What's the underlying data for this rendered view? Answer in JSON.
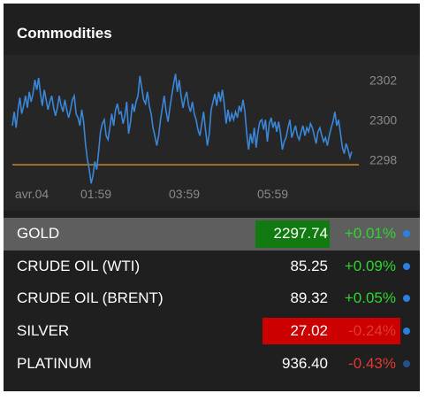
{
  "header": {
    "title": "Commodities"
  },
  "colors": {
    "up": "#2fd52f",
    "down": "#e03a2e",
    "line": "#3a86d8",
    "baseline": "#c9852a",
    "price_up_bg": "#117a11",
    "price_down_bg": "#cc0000",
    "dot_active": "#2a7fe0",
    "dot_dim": "#26508a"
  },
  "chart_data": {
    "type": "line",
    "x_ticks": [
      "avr.04",
      "01:59",
      "03:59",
      "05:59"
    ],
    "y_ticks": [
      "2302",
      "2300",
      "2298"
    ],
    "ylim": [
      2297.3,
      2302.9
    ],
    "baseline": 2297.74,
    "series": [
      {
        "values": [
          2299.7,
          2300.4,
          2299.6,
          2300.5,
          2301.1,
          2300.3,
          2300.7,
          2301.2,
          2300.6,
          2301.4,
          2300.9,
          2301.3,
          2302.0,
          2301.5,
          2302.1,
          2301.3,
          2300.7,
          2301.5,
          2301.0,
          2300.5,
          2300.9,
          2301.2,
          2300.6,
          2300.2,
          2300.6,
          2301.2,
          2300.7,
          2300.4,
          2301.0,
          2300.5,
          2300.1,
          2300.5,
          2301.0,
          2301.2,
          2300.3,
          2300.1,
          2299.7,
          2300.5,
          2299.9,
          2298.8,
          2298.0,
          2297.5,
          2296.8,
          2297.2,
          2297.9,
          2297.5,
          2298.4,
          2299.4,
          2299.8,
          2300.0,
          2299.2,
          2299.0,
          2299.6,
          2300.3,
          2299.7,
          2300.5,
          2300.8,
          2300.3,
          2300.4,
          2299.8,
          2300.2,
          2300.9,
          2299.3,
          2299.9,
          2300.8,
          2300.4,
          2300.9,
          2301.2,
          2302.2,
          2301.6,
          2301.0,
          2300.8,
          2301.4,
          2300.7,
          2300.3,
          2299.6,
          2299.2,
          2298.7,
          2299.2,
          2300.0,
          2300.6,
          2301.2,
          2300.4,
          2299.9,
          2300.6,
          2301.2,
          2301.8,
          2302.3,
          2301.4,
          2302.0,
          2301.2,
          2300.6,
          2301.1,
          2301.4,
          2300.7,
          2300.4,
          2300.9,
          2300.3,
          2300.0,
          2299.5,
          2299.2,
          2299.8,
          2300.4,
          2299.5,
          2298.7,
          2299.3,
          2300.5,
          2300.9,
          2301.3,
          2300.7,
          2301.4,
          2300.9,
          2301.5,
          2300.8,
          2299.8,
          2300.5,
          2299.9,
          2300.3,
          2300.0,
          2300.4,
          2300.1,
          2300.7,
          2300.4,
          2301.0,
          2300.4,
          2299.3,
          2298.5,
          2299.3,
          2298.8,
          2299.6,
          2298.6,
          2299.4,
          2299.9,
          2300.0,
          2299.5,
          2300.0,
          2298.9,
          2299.8,
          2300.1,
          2299.6,
          2299.9,
          2299.4,
          2299.9,
          2299.3,
          2298.5,
          2298.9,
          2299.1,
          2299.6,
          2300.0,
          2299.1,
          2299.4,
          2299.7,
          2299.2,
          2299.0,
          2299.4,
          2299.7,
          2299.2,
          2299.6,
          2299.4,
          2299.8,
          2299.6,
          2299.2,
          2298.8,
          2299.4,
          2299.6,
          2299.2,
          2298.9,
          2299.1,
          2298.7,
          2299.2,
          2299.6,
          2299.9,
          2300.4,
          2299.7,
          2300.0,
          2299.3,
          2298.6,
          2298.3,
          2298.8,
          2298.5,
          2298.1,
          2298.4
        ]
      }
    ]
  },
  "rows": [
    {
      "name": "GOLD",
      "price": "2297.74",
      "change": "+0.01%"
    },
    {
      "name": "CRUDE OIL (WTI)",
      "price": "85.25",
      "change": "+0.09%"
    },
    {
      "name": "CRUDE OIL (BRENT)",
      "price": "89.32",
      "change": "+0.05%"
    },
    {
      "name": "SILVER",
      "price": "27.02",
      "change": "-0.24%"
    },
    {
      "name": "PLATINUM",
      "price": "936.40",
      "change": "-0.43%"
    }
  ]
}
